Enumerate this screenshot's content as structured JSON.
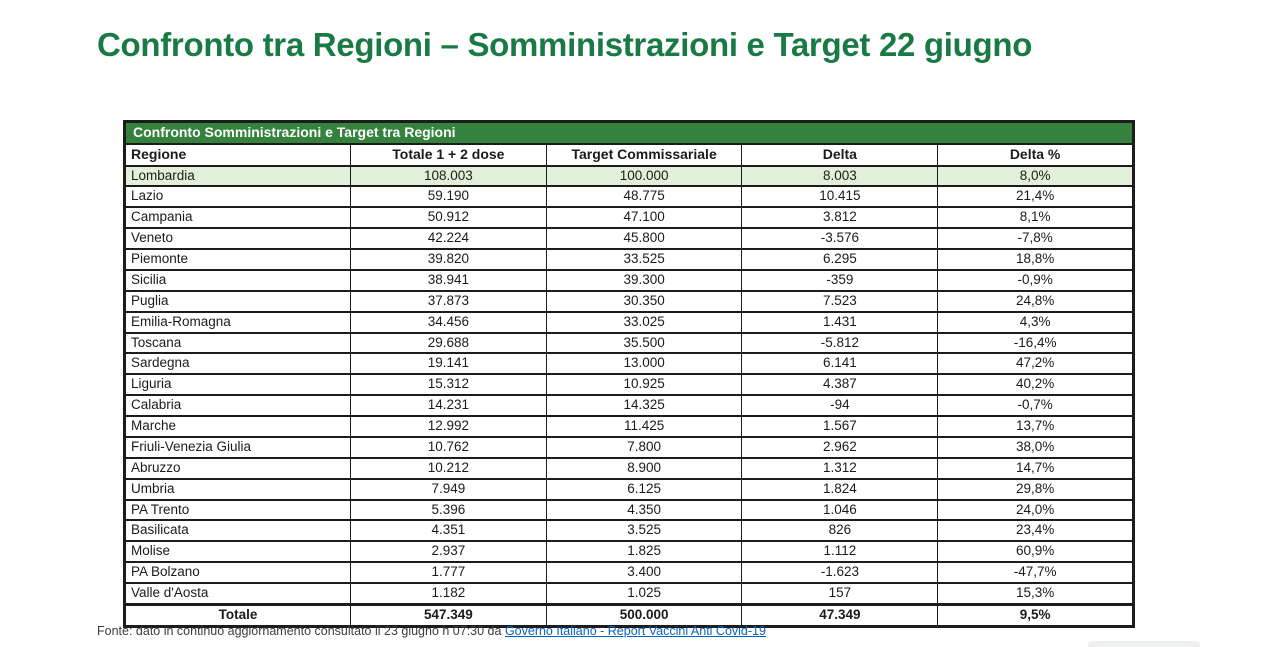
{
  "page": {
    "title": "Confronto tra Regioni – Somministrazioni e Target 22 giugno"
  },
  "colors": {
    "title_green": "#1a7a45",
    "band_green": "#35823f",
    "highlight_row_green": "#e2efda",
    "link_blue": "#0563c1"
  },
  "table": {
    "band_title": "Confronto Somministrazioni e Target tra Regioni",
    "columns": [
      "Regione",
      "Totale 1 + 2 dose",
      "Target Commissariale",
      "Delta",
      "Delta %"
    ],
    "rows": [
      {
        "region": "Lombardia",
        "total": "108.003",
        "target": "100.000",
        "delta": "8.003",
        "delta_pct": "8,0%",
        "highlight": true
      },
      {
        "region": "Lazio",
        "total": "59.190",
        "target": "48.775",
        "delta": "10.415",
        "delta_pct": "21,4%"
      },
      {
        "region": "Campania",
        "total": "50.912",
        "target": "47.100",
        "delta": "3.812",
        "delta_pct": "8,1%"
      },
      {
        "region": "Veneto",
        "total": "42.224",
        "target": "45.800",
        "delta": "-3.576",
        "delta_pct": "-7,8%"
      },
      {
        "region": "Piemonte",
        "total": "39.820",
        "target": "33.525",
        "delta": "6.295",
        "delta_pct": "18,8%"
      },
      {
        "region": "Sicilia",
        "total": "38.941",
        "target": "39.300",
        "delta": "-359",
        "delta_pct": "-0,9%"
      },
      {
        "region": "Puglia",
        "total": "37.873",
        "target": "30.350",
        "delta": "7.523",
        "delta_pct": "24,8%"
      },
      {
        "region": "Emilia-Romagna",
        "total": "34.456",
        "target": "33.025",
        "delta": "1.431",
        "delta_pct": "4,3%"
      },
      {
        "region": "Toscana",
        "total": "29.688",
        "target": "35.500",
        "delta": "-5.812",
        "delta_pct": "-16,4%"
      },
      {
        "region": "Sardegna",
        "total": "19.141",
        "target": "13.000",
        "delta": "6.141",
        "delta_pct": "47,2%"
      },
      {
        "region": "Liguria",
        "total": "15.312",
        "target": "10.925",
        "delta": "4.387",
        "delta_pct": "40,2%"
      },
      {
        "region": "Calabria",
        "total": "14.231",
        "target": "14.325",
        "delta": "-94",
        "delta_pct": "-0,7%"
      },
      {
        "region": "Marche",
        "total": "12.992",
        "target": "11.425",
        "delta": "1.567",
        "delta_pct": "13,7%"
      },
      {
        "region": "Friuli-Venezia Giulia",
        "total": "10.762",
        "target": "7.800",
        "delta": "2.962",
        "delta_pct": "38,0%"
      },
      {
        "region": "Abruzzo",
        "total": "10.212",
        "target": "8.900",
        "delta": "1.312",
        "delta_pct": "14,7%"
      },
      {
        "region": "Umbria",
        "total": "7.949",
        "target": "6.125",
        "delta": "1.824",
        "delta_pct": "29,8%"
      },
      {
        "region": "PA Trento",
        "total": "5.396",
        "target": "4.350",
        "delta": "1.046",
        "delta_pct": "24,0%"
      },
      {
        "region": "Basilicata",
        "total": "4.351",
        "target": "3.525",
        "delta": "826",
        "delta_pct": "23,4%"
      },
      {
        "region": "Molise",
        "total": "2.937",
        "target": "1.825",
        "delta": "1.112",
        "delta_pct": "60,9%"
      },
      {
        "region": "PA Bolzano",
        "total": "1.777",
        "target": "3.400",
        "delta": "-1.623",
        "delta_pct": "-47,7%"
      },
      {
        "region": "Valle d'Aosta",
        "total": "1.182",
        "target": "1.025",
        "delta": "157",
        "delta_pct": "15,3%"
      }
    ],
    "total": {
      "region": "Totale",
      "total": "547.349",
      "target": "500.000",
      "delta": "47.349",
      "delta_pct": "9,5%"
    }
  },
  "footer": {
    "prefix": "Fonte: dato in continuo aggiornamento consultato il 23 giugno h 07:30 da ",
    "link_text": "Governo Italiano - Report Vaccini Anti Covid-19"
  }
}
